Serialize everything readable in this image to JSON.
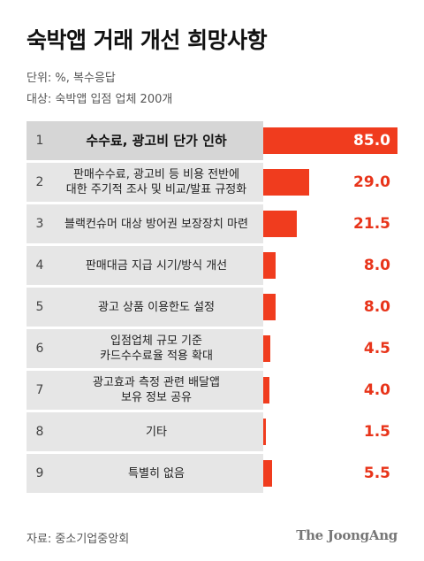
{
  "title": "숙박앱 거래 개선 희망사항",
  "unit": "단위: %, 복수응답",
  "target": "대상: 숙박앱 입점 업체 200개",
  "source": "자료: 중소기업중앙회",
  "brand": "The JoongAng",
  "colors": {
    "bar": "#f03c1e",
    "value": "#e8341a"
  },
  "chart_data": {
    "type": "bar",
    "orientation": "horizontal",
    "xlim": [
      0,
      85
    ],
    "rows": [
      {
        "rank": "1",
        "label": "수수료, 광고비 단가 인하",
        "value": 85.0,
        "value_label": "85.0"
      },
      {
        "rank": "2",
        "label": "판매수수료, 광고비 등 비용 전반에\n대한 주기적 조사 및 비교/발표 규정화",
        "value": 29.0,
        "value_label": "29.0"
      },
      {
        "rank": "3",
        "label": "블랙컨슈머 대상 방어권 보장장치 마련",
        "value": 21.5,
        "value_label": "21.5"
      },
      {
        "rank": "4",
        "label": "판매대금 지급 시기/방식 개선",
        "value": 8.0,
        "value_label": "8.0"
      },
      {
        "rank": "5",
        "label": "광고 상품 이용한도 설정",
        "value": 8.0,
        "value_label": "8.0"
      },
      {
        "rank": "6",
        "label": "입점업체 규모 기준\n카드수수료율 적용 확대",
        "value": 4.5,
        "value_label": "4.5"
      },
      {
        "rank": "7",
        "label": "광고효과 측정 관련 배달앱\n보유 정보 공유",
        "value": 4.0,
        "value_label": "4.0"
      },
      {
        "rank": "8",
        "label": "기타",
        "value": 1.5,
        "value_label": "1.5"
      },
      {
        "rank": "9",
        "label": "특별히 없음",
        "value": 5.5,
        "value_label": "5.5"
      }
    ]
  }
}
